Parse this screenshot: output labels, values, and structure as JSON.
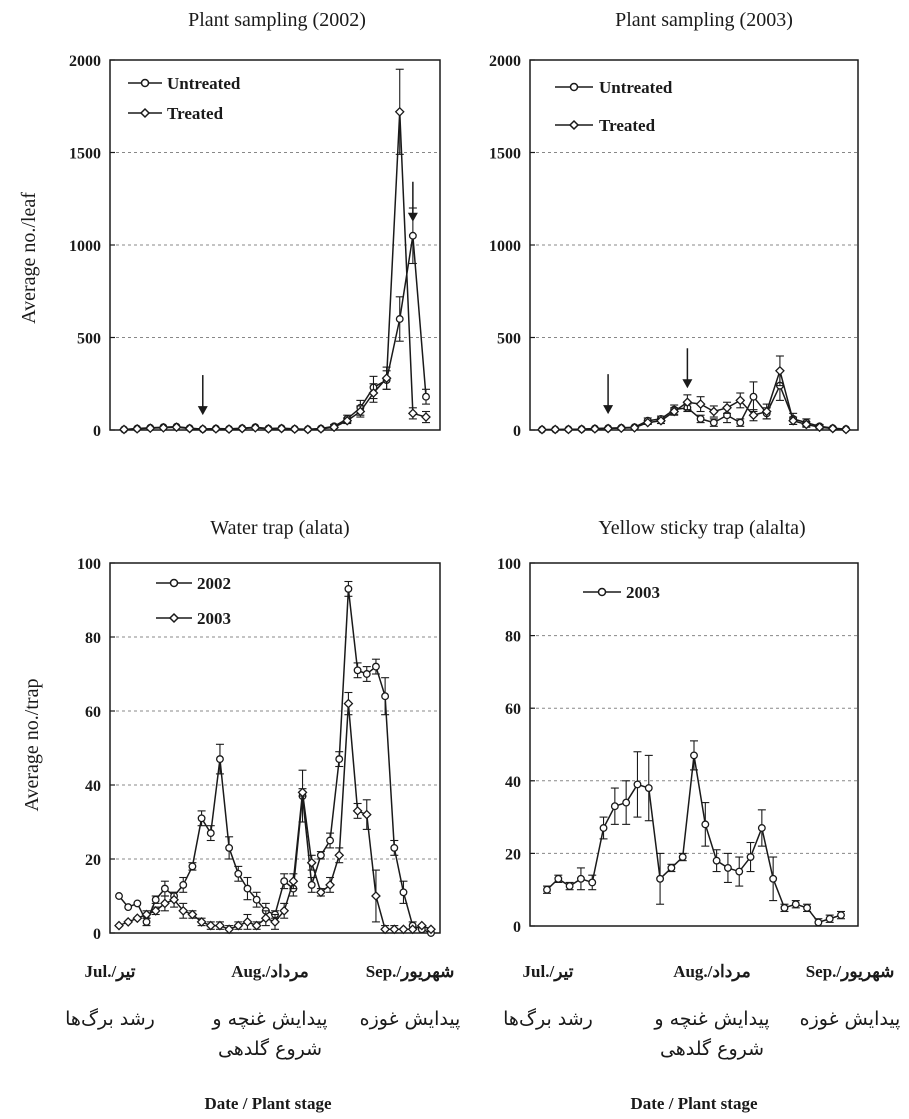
{
  "colors": {
    "ink": "#1a1a1a",
    "grid": "#888888",
    "background": "#ffffff"
  },
  "chart_data": [
    {
      "type": "line",
      "title": "Plant sampling (2002)",
      "ylabel": "Average no./leaf",
      "xlabel": "",
      "ylim": [
        0,
        2000
      ],
      "yticks": [
        "0",
        "500",
        "1000",
        "1500",
        "2000"
      ],
      "grid": true,
      "legend_placement": "top-left",
      "annotations": [
        "arrow at sample 6",
        "arrow at sample 22"
      ],
      "series": [
        {
          "name": "Untreated",
          "marker": "circle",
          "values": [
            3,
            8,
            12,
            15,
            18,
            10,
            5,
            8,
            6,
            10,
            15,
            8,
            10,
            6,
            4,
            8,
            20,
            60,
            120,
            230,
            270,
            600,
            1050,
            180
          ],
          "errors": [
            0,
            0,
            0,
            0,
            0,
            0,
            0,
            0,
            0,
            0,
            0,
            0,
            0,
            0,
            0,
            0,
            10,
            20,
            40,
            60,
            50,
            120,
            150,
            40
          ]
        },
        {
          "name": "Treated",
          "marker": "diamond",
          "values": [
            3,
            6,
            10,
            12,
            15,
            8,
            5,
            6,
            5,
            8,
            12,
            6,
            8,
            5,
            3,
            6,
            15,
            50,
            100,
            200,
            280,
            1720,
            90,
            70
          ],
          "errors": [
            0,
            0,
            0,
            0,
            0,
            0,
            0,
            0,
            0,
            0,
            0,
            0,
            0,
            0,
            0,
            0,
            5,
            15,
            30,
            50,
            60,
            230,
            30,
            30
          ]
        }
      ]
    },
    {
      "type": "line",
      "title": "Plant sampling (2003)",
      "ylabel": "",
      "xlabel": "",
      "ylim": [
        0,
        2000
      ],
      "yticks": [
        "0",
        "500",
        "1000",
        "1500",
        "2000"
      ],
      "grid": true,
      "legend_placement": "top-left",
      "annotations": [
        "arrow at sample 5",
        "arrow at sample 11"
      ],
      "series": [
        {
          "name": "Untreated",
          "marker": "circle",
          "values": [
            2,
            3,
            4,
            5,
            8,
            10,
            12,
            15,
            50,
            60,
            110,
            120,
            60,
            40,
            80,
            40,
            180,
            90,
            240,
            60,
            40,
            20,
            10,
            5
          ],
          "errors": [
            0,
            0,
            0,
            0,
            2,
            3,
            4,
            5,
            15,
            15,
            25,
            20,
            20,
            20,
            40,
            20,
            80,
            30,
            80,
            30,
            20,
            10,
            5,
            2
          ]
        },
        {
          "name": "Treated",
          "marker": "diamond",
          "values": [
            2,
            3,
            3,
            4,
            6,
            8,
            10,
            12,
            40,
            50,
            100,
            150,
            140,
            100,
            120,
            160,
            80,
            100,
            320,
            50,
            30,
            15,
            8,
            3
          ],
          "errors": [
            0,
            0,
            0,
            0,
            2,
            3,
            4,
            5,
            10,
            15,
            20,
            40,
            40,
            30,
            30,
            40,
            30,
            40,
            80,
            20,
            15,
            8,
            4,
            2
          ]
        }
      ]
    },
    {
      "type": "line",
      "title": "Water trap (alata)",
      "ylabel": "Average no./trap",
      "xlabel": "Date / Plant stage",
      "ylim": [
        0,
        100
      ],
      "yticks": [
        "0",
        "20",
        "40",
        "60",
        "80",
        "100"
      ],
      "grid": true,
      "legend_placement": "top-left",
      "xgroups": [
        {
          "month": "Jul./تیر",
          "stage": [
            "رشد برگ‌ها"
          ]
        },
        {
          "month": "Aug./مرداد",
          "stage": [
            "پیدایش غنچه و",
            "شروع گلدهی"
          ]
        },
        {
          "month": "Sep./شهریور",
          "stage": [
            "پیدایش غوزه"
          ]
        }
      ],
      "series": [
        {
          "name": "2002",
          "marker": "circle",
          "values": [
            10,
            7,
            8,
            3,
            9,
            12,
            10,
            13,
            18,
            31,
            27,
            47,
            23,
            16,
            12,
            9,
            6,
            5,
            14,
            12,
            37,
            13,
            21,
            25,
            47,
            93,
            71,
            70,
            72,
            64,
            23,
            11,
            2,
            1,
            0
          ],
          "errors": [
            0,
            0,
            0,
            1,
            1,
            2,
            1,
            2,
            1,
            2,
            2,
            4,
            3,
            2,
            3,
            2,
            2,
            1,
            2,
            2,
            7,
            2,
            1,
            2,
            2,
            2,
            2,
            2,
            2,
            5,
            2,
            3,
            1,
            0,
            0
          ]
        },
        {
          "name": "2003",
          "marker": "diamond",
          "values": [
            2,
            3,
            4,
            5,
            6,
            8,
            9,
            6,
            5,
            3,
            2,
            2,
            1,
            2,
            3,
            2,
            4,
            3,
            6,
            14,
            38,
            19,
            11,
            13,
            21,
            62,
            33,
            32,
            10,
            1,
            1,
            1,
            1,
            2,
            1
          ],
          "errors": [
            0,
            0,
            0,
            1,
            1,
            2,
            2,
            2,
            1,
            1,
            1,
            1,
            1,
            1,
            2,
            1,
            2,
            2,
            2,
            2,
            1,
            2,
            1,
            2,
            2,
            3,
            2,
            4,
            7,
            1,
            1,
            0,
            0,
            0,
            0
          ]
        }
      ]
    },
    {
      "type": "line",
      "title": "Yellow sticky trap (alalta)",
      "ylabel": "",
      "xlabel": "Date / Plant stage",
      "ylim": [
        0,
        100
      ],
      "yticks": [
        "0",
        "20",
        "40",
        "60",
        "80",
        "100"
      ],
      "grid": true,
      "legend_placement": "top-left",
      "xgroups": [
        {
          "month": "Jul./تیر",
          "stage": [
            "رشد برگ‌ها"
          ]
        },
        {
          "month": "Aug./مرداد",
          "stage": [
            "پیدایش غنچه و",
            "شروع گلدهی"
          ]
        },
        {
          "month": "Sep./شهریور",
          "stage": [
            "پیدایش غوزه"
          ]
        }
      ],
      "series": [
        {
          "name": "2003",
          "marker": "circle",
          "values": [
            10,
            13,
            11,
            13,
            12,
            27,
            33,
            34,
            39,
            38,
            13,
            16,
            19,
            47,
            28,
            18,
            16,
            15,
            19,
            27,
            13,
            5,
            6,
            5,
            1,
            2,
            3
          ],
          "errors": [
            1,
            1,
            1,
            3,
            2,
            3,
            5,
            6,
            9,
            9,
            7,
            1,
            1,
            4,
            6,
            3,
            4,
            4,
            4,
            5,
            6,
            1,
            1,
            1,
            1,
            1,
            1
          ]
        }
      ]
    }
  ]
}
